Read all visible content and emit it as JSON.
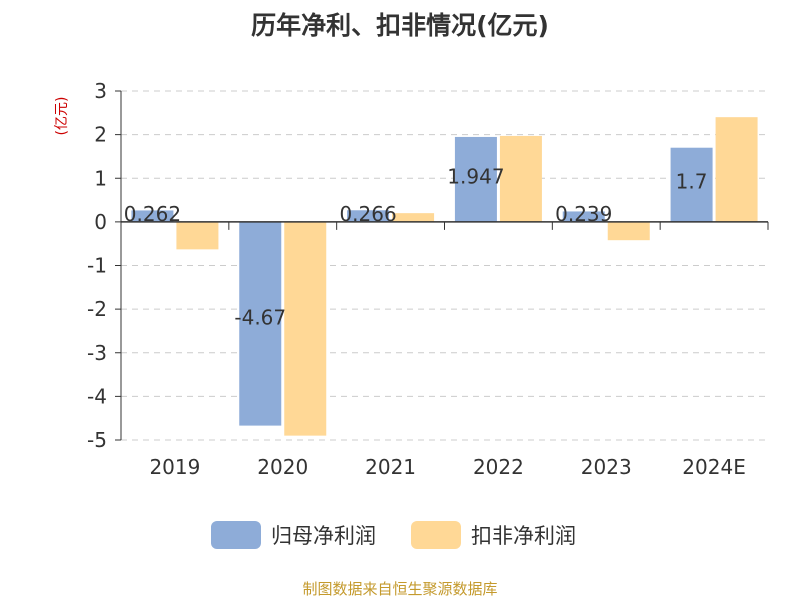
{
  "title": "历年净利、扣非情况(亿元)",
  "source_note": "制图数据来自恒生聚源数据库",
  "colors": {
    "series1": "#8eacd8",
    "series2": "#ffd896",
    "unit_label": "#cc0000"
  },
  "chart_data": {
    "type": "bar",
    "title": "历年净利、扣非情况(亿元)",
    "ylabel": "(亿元)",
    "categories": [
      "2019",
      "2020",
      "2021",
      "2022",
      "2023",
      "2024E"
    ],
    "ylim": [
      -5,
      3
    ],
    "yticks": [
      3,
      2,
      1,
      0,
      -1,
      -2,
      -3,
      -4,
      -5
    ],
    "grid": true,
    "legend": "bottom",
    "series": [
      {
        "name": "归母净利润",
        "values": [
          0.262,
          -4.67,
          0.266,
          1.947,
          0.239,
          1.7
        ],
        "data_labels": [
          "0.262",
          "-4.67",
          "0.266",
          "1.947",
          "0.239",
          "1.7"
        ]
      },
      {
        "name": "扣非净利润",
        "values": [
          -0.63,
          -4.9,
          0.2,
          1.97,
          -0.42,
          2.4
        ]
      }
    ]
  }
}
